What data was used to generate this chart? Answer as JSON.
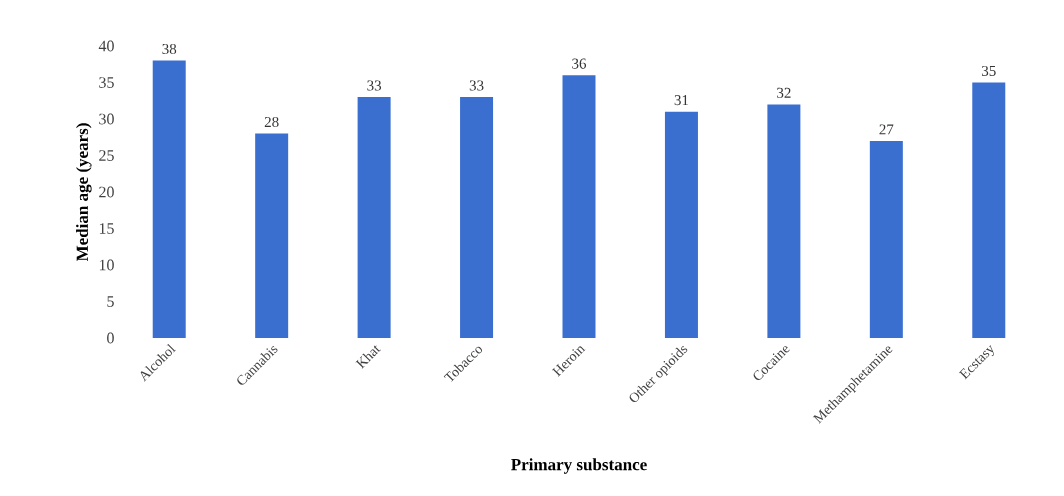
{
  "chart_data": {
    "type": "bar",
    "xlabel": "Primary substance",
    "ylabel": "Median age (years)",
    "categories": [
      "Alcohol",
      "Cannabis",
      "Khat",
      "Tobacco",
      "Heroin",
      "Other opioids",
      "Cocaine",
      "Methamphetamine",
      "Ecstasy"
    ],
    "values": [
      38,
      28,
      33,
      33,
      36,
      31,
      32,
      27,
      35
    ],
    "color": "#3a6fd0",
    "ylim": [
      0,
      40
    ],
    "yticks": [
      0,
      5,
      10,
      15,
      20,
      25,
      30,
      35,
      40
    ],
    "data_labels": true
  }
}
